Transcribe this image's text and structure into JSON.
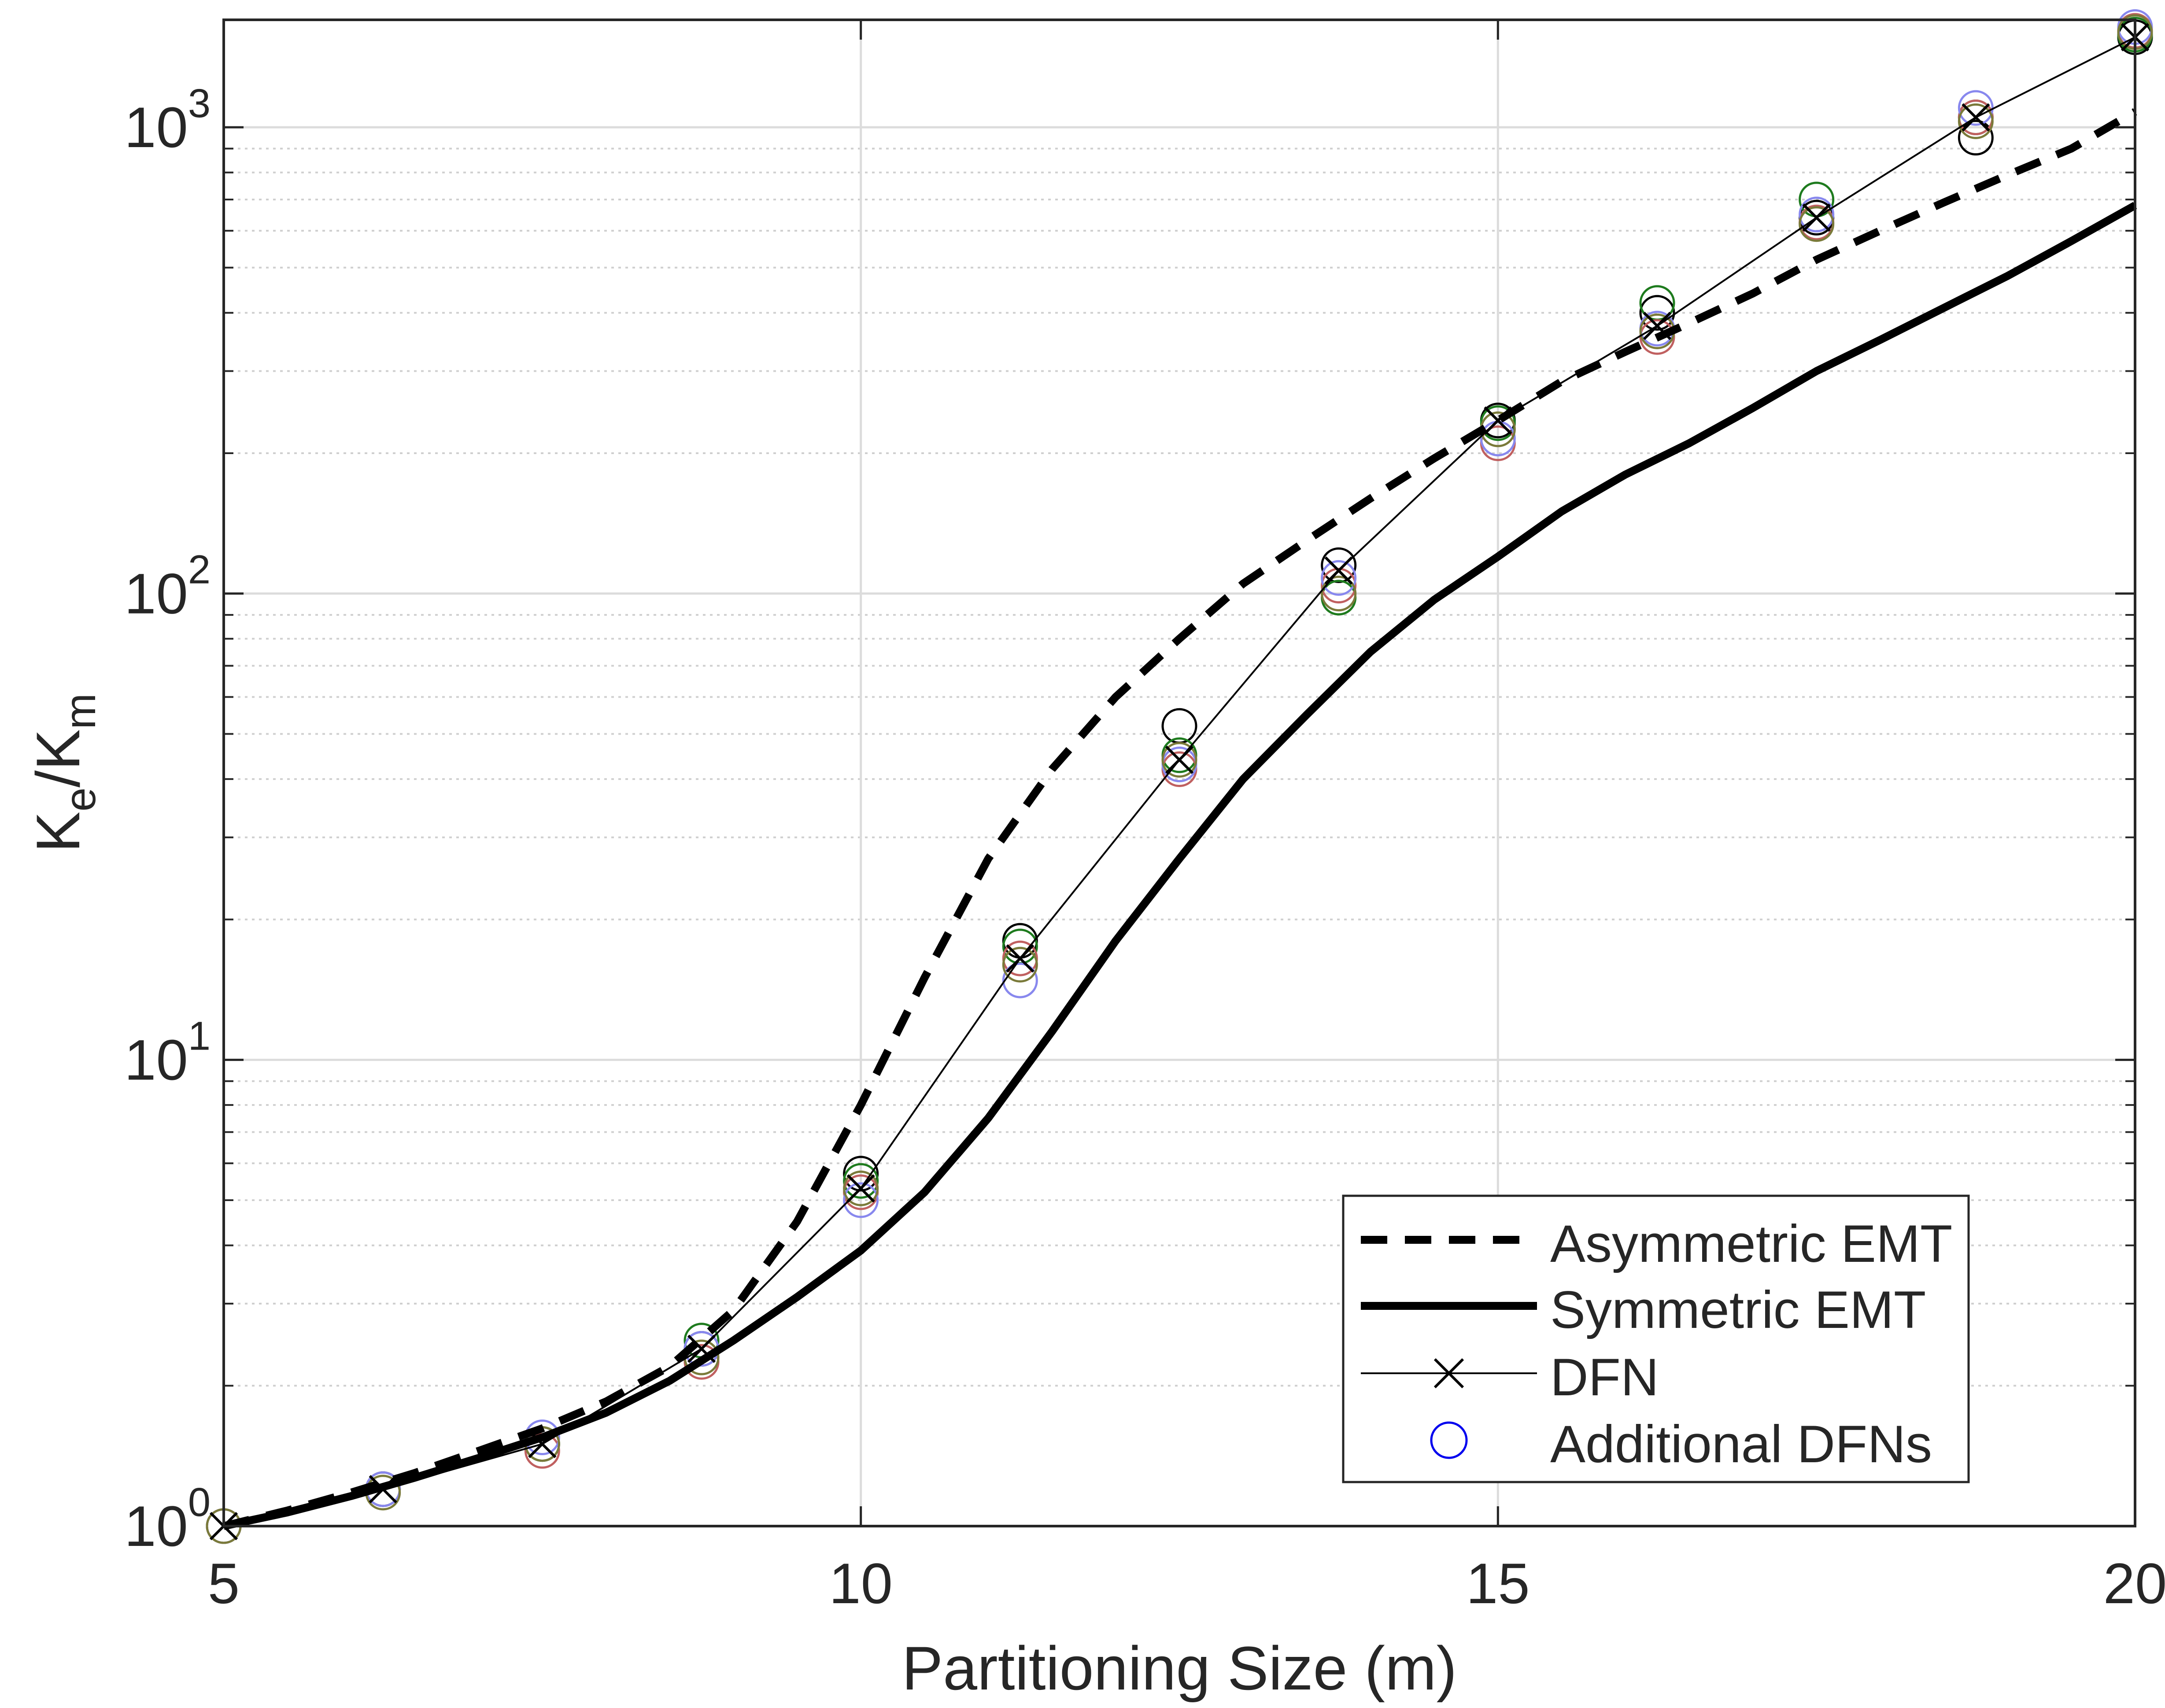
{
  "chart_data": {
    "type": "line",
    "title": "",
    "xlabel": "Partitioning Size (m)",
    "ylabel": {
      "main": "K",
      "sub1": "e",
      "sep": "/K",
      "sub2": "m"
    },
    "xlim": [
      5,
      20
    ],
    "ylim": [
      1,
      1700
    ],
    "yscale": "log",
    "grid": "on",
    "x_ticks": [
      {
        "value": 5,
        "label": "5"
      },
      {
        "value": 10,
        "label": "10"
      },
      {
        "value": 15,
        "label": "15"
      },
      {
        "value": 20,
        "label": "20"
      }
    ],
    "y_ticks": [
      {
        "value": 1,
        "base": "10",
        "exp": "0"
      },
      {
        "value": 10,
        "base": "10",
        "exp": "1"
      },
      {
        "value": 100,
        "base": "10",
        "exp": "2"
      },
      {
        "value": 1000,
        "base": "10",
        "exp": "3"
      }
    ],
    "legend_position": "bottom-right",
    "series": [
      {
        "name": "Asymmetric EMT",
        "style": "dashed-thick",
        "color": "#000000",
        "x": [
          5,
          5.5,
          6,
          6.5,
          7,
          7.5,
          8,
          8.5,
          9,
          9.5,
          10,
          10.5,
          11,
          11.5,
          12,
          12.5,
          13,
          13.5,
          14,
          14.5,
          15,
          15.5,
          16,
          16.5,
          17,
          17.5,
          18,
          18.5,
          19,
          19.5,
          20
        ],
        "y": [
          1.0,
          1.08,
          1.18,
          1.3,
          1.45,
          1.62,
          1.85,
          2.2,
          2.9,
          4.5,
          8.0,
          15,
          27,
          42,
          60,
          80,
          105,
          130,
          160,
          195,
          235,
          285,
          330,
          380,
          440,
          520,
          600,
          690,
          790,
          900,
          1080
        ]
      },
      {
        "name": "Symmetric EMT",
        "style": "solid-thick",
        "color": "#000000",
        "x": [
          5,
          5.5,
          6,
          6.5,
          7,
          7.5,
          8,
          8.5,
          9,
          9.5,
          10,
          10.5,
          11,
          11.5,
          12,
          12.5,
          13,
          13.5,
          14,
          14.5,
          15,
          15.5,
          16,
          16.5,
          17,
          17.5,
          18,
          18.5,
          19,
          19.5,
          20
        ],
        "y": [
          1.0,
          1.07,
          1.16,
          1.27,
          1.4,
          1.55,
          1.75,
          2.05,
          2.5,
          3.1,
          3.9,
          5.2,
          7.5,
          11.5,
          18,
          27,
          40,
          55,
          75,
          97,
          120,
          150,
          180,
          210,
          250,
          300,
          350,
          410,
          480,
          570,
          680
        ]
      },
      {
        "name": "DFN",
        "style": "thin-x",
        "color": "#000000",
        "x": [
          5,
          6.25,
          7.5,
          8.75,
          10,
          11.25,
          12.5,
          13.75,
          15,
          16.25,
          17.5,
          18.75,
          20
        ],
        "y": [
          1.0,
          1.2,
          1.5,
          2.4,
          5.3,
          16.5,
          44,
          112,
          235,
          375,
          640,
          1050,
          1560
        ]
      },
      {
        "name": "Additional DFNs",
        "style": "circles",
        "color": "#0000ee",
        "groups": [
          {
            "color": "#000000",
            "x": [
              5,
              6.25,
              7.5,
              8.75,
              10,
              11.25,
              12.5,
              13.75,
              15,
              16.25,
              17.5,
              18.75,
              20
            ],
            "y": [
              1.0,
              1.2,
              1.5,
              2.4,
              5.7,
              18,
              52,
              115,
              235,
              400,
              640,
              950,
              1560
            ]
          },
          {
            "color": "#1e7b1e",
            "x": [
              5,
              6.25,
              7.5,
              8.75,
              10,
              11.25,
              12.5,
              13.75,
              15,
              16.25,
              17.5,
              18.75,
              20
            ],
            "y": [
              1.0,
              1.2,
              1.5,
              2.5,
              5.5,
              17.5,
              45,
              98,
              232,
              420,
              700,
              1050,
              1580
            ]
          },
          {
            "color": "#c06060",
            "x": [
              5,
              6.25,
              7.5,
              8.75,
              10,
              11.25,
              12.5,
              13.75,
              15,
              16.25,
              17.5,
              18.75,
              20
            ],
            "y": [
              1.0,
              1.2,
              1.45,
              2.25,
              5.2,
              16.5,
              42,
              104,
              210,
              355,
              625,
              1050,
              1610
            ]
          },
          {
            "color": "#8888ee",
            "x": [
              5,
              6.25,
              7.5,
              8.75,
              10,
              11.25,
              12.5,
              13.75,
              15,
              16.25,
              17.5,
              18.75,
              20
            ],
            "y": [
              1.0,
              1.2,
              1.55,
              2.4,
              5.0,
              14.8,
              43,
              108,
              215,
              370,
              650,
              1100,
              1640
            ]
          },
          {
            "color": "#7a7a3a",
            "x": [
              5,
              6.25,
              7.5,
              8.75,
              10,
              11.25,
              12.5,
              13.75,
              15,
              16.25,
              17.5,
              18.75,
              20
            ],
            "y": [
              1.0,
              1.18,
              1.5,
              2.3,
              5.3,
              16,
              44,
              100,
              225,
              365,
              620,
              1030,
              1600
            ]
          }
        ]
      }
    ]
  }
}
